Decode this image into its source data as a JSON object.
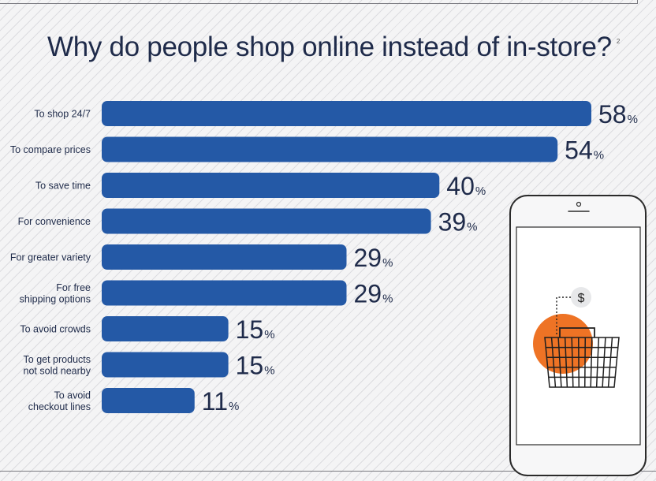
{
  "chart_data": {
    "type": "bar",
    "orientation": "horizontal",
    "title": "Why do people shop online instead of in-store?",
    "title_footnote": "2",
    "categories": [
      "To shop 24/7",
      "To compare prices",
      "To save time",
      "For convenience",
      "For greater variety",
      "For free\nshipping options",
      "To avoid crowds",
      "To get products\nnot sold nearby",
      "To avoid\ncheckout lines"
    ],
    "values": [
      58,
      54,
      40,
      39,
      29,
      29,
      15,
      15,
      11
    ],
    "value_suffix": "%",
    "xlim": [
      0,
      58
    ],
    "grid": false,
    "legend": "none",
    "bar_color": "#2459a6"
  },
  "illustration": {
    "description_icon": "smartphone-shopping-basket-icon",
    "dollar_symbol": "$",
    "accent_color": "#ee7325"
  }
}
